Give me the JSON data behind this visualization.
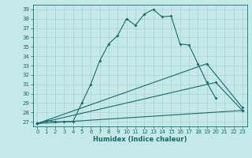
{
  "title": "",
  "xlabel": "Humidex (Indice chaleur)",
  "bg_color": "#c5e8e8",
  "line_color": "#1a6b6b",
  "grid_color": "#a8d4d4",
  "xlim": [
    -0.5,
    23.5
  ],
  "ylim": [
    26.5,
    39.5
  ],
  "yticks": [
    27,
    28,
    29,
    30,
    31,
    32,
    33,
    34,
    35,
    36,
    37,
    38,
    39
  ],
  "xticks": [
    0,
    1,
    2,
    3,
    4,
    5,
    6,
    7,
    8,
    9,
    10,
    11,
    12,
    13,
    14,
    15,
    16,
    17,
    18,
    19,
    20,
    21,
    22,
    23
  ],
  "series": [
    {
      "x": [
        0,
        1,
        2,
        3,
        4,
        5,
        6,
        7,
        8,
        9,
        10,
        11,
        12,
        13,
        14,
        15,
        16,
        17,
        18,
        19,
        20
      ],
      "y": [
        26.8,
        27.1,
        27.0,
        27.0,
        27.0,
        29.0,
        31.0,
        33.5,
        35.3,
        36.2,
        38.0,
        37.3,
        38.5,
        39.0,
        38.2,
        38.3,
        35.3,
        35.2,
        33.2,
        31.2,
        29.5
      ]
    },
    {
      "x": [
        0,
        19,
        23
      ],
      "y": [
        26.8,
        33.2,
        28.5
      ]
    },
    {
      "x": [
        0,
        20,
        23
      ],
      "y": [
        26.8,
        31.2,
        28.2
      ]
    },
    {
      "x": [
        0,
        23
      ],
      "y": [
        26.8,
        28.2
      ]
    }
  ]
}
